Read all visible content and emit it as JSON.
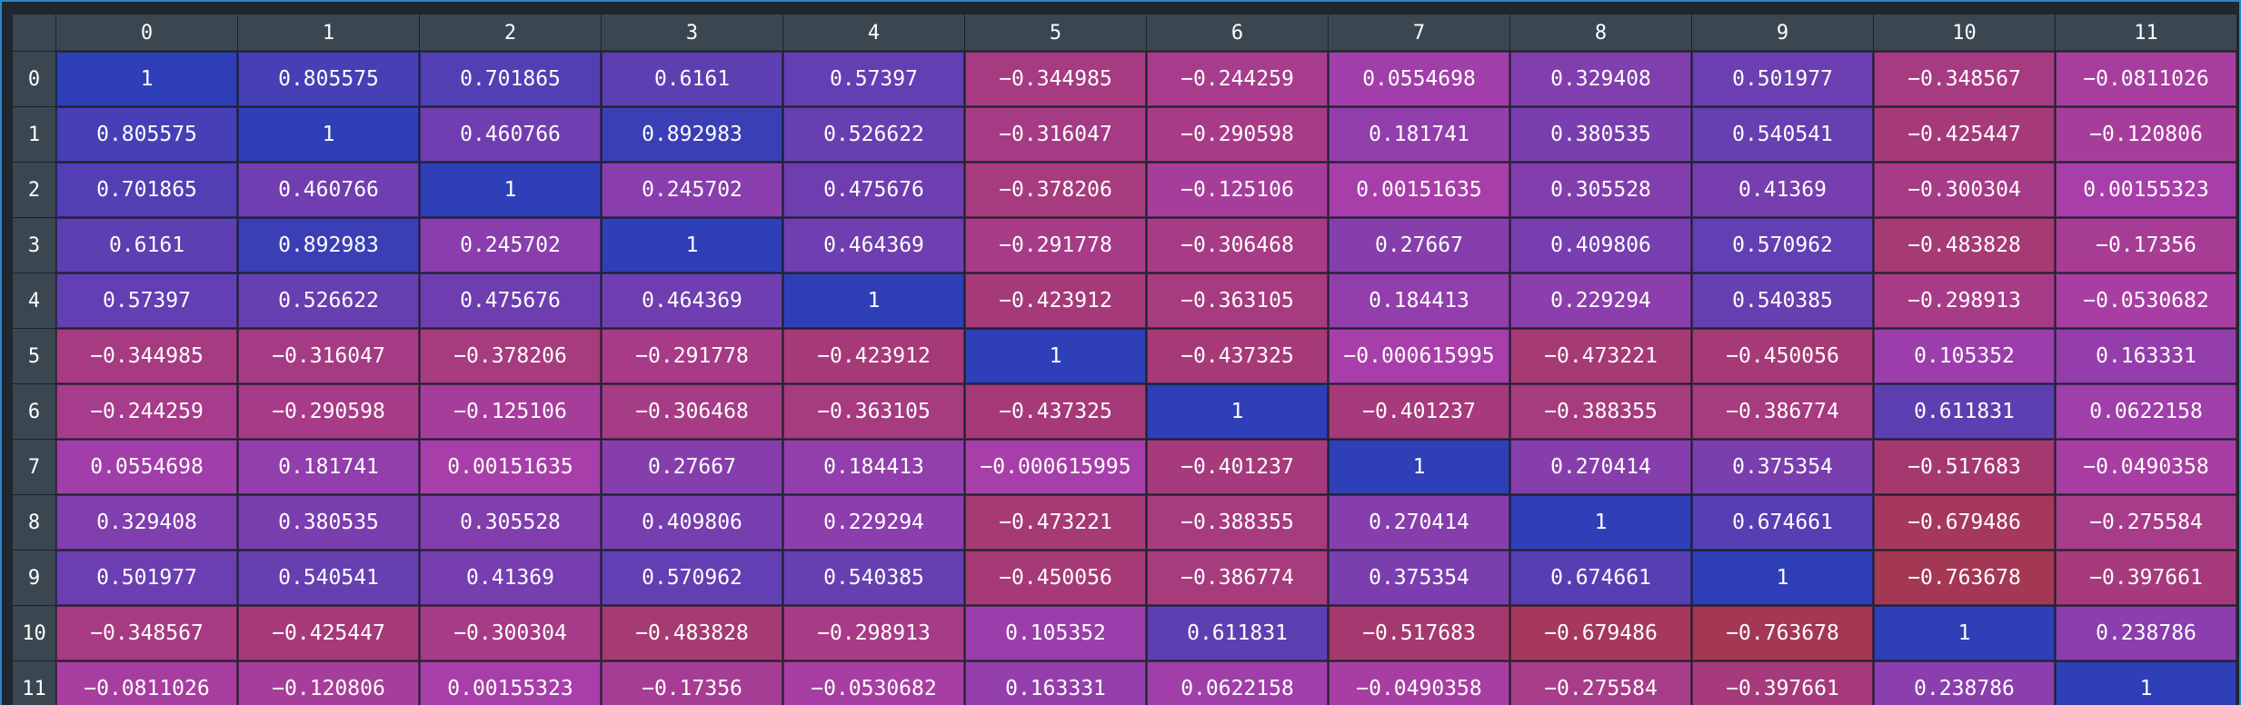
{
  "chart_data": {
    "type": "heatmap",
    "title": "",
    "xlabel": "",
    "ylabel": "",
    "row_labels": [
      "0",
      "1",
      "2",
      "3",
      "4",
      "5",
      "6",
      "7",
      "8",
      "9",
      "10",
      "11"
    ],
    "col_labels": [
      "0",
      "1",
      "2",
      "3",
      "4",
      "5",
      "6",
      "7",
      "8",
      "9",
      "10",
      "11"
    ],
    "value_range": [
      -1,
      1
    ],
    "colors": {
      "low": "#a33538",
      "mid": "#a83ea9",
      "high": "#2e3fb8"
    },
    "values": [
      [
        1,
        0.805575,
        0.701865,
        0.6161,
        0.57397,
        -0.344985,
        -0.244259,
        0.0554698,
        0.329408,
        0.501977,
        -0.348567,
        -0.0811026
      ],
      [
        0.805575,
        1,
        0.460766,
        0.892983,
        0.526622,
        -0.316047,
        -0.290598,
        0.181741,
        0.380535,
        0.540541,
        -0.425447,
        -0.120806
      ],
      [
        0.701865,
        0.460766,
        1,
        0.245702,
        0.475676,
        -0.378206,
        -0.125106,
        0.00151635,
        0.305528,
        0.41369,
        -0.300304,
        0.00155323
      ],
      [
        0.6161,
        0.892983,
        0.245702,
        1,
        0.464369,
        -0.291778,
        -0.306468,
        0.27667,
        0.409806,
        0.570962,
        -0.483828,
        -0.17356
      ],
      [
        0.57397,
        0.526622,
        0.475676,
        0.464369,
        1,
        -0.423912,
        -0.363105,
        0.184413,
        0.229294,
        0.540385,
        -0.298913,
        -0.0530682
      ],
      [
        -0.344985,
        -0.316047,
        -0.378206,
        -0.291778,
        -0.423912,
        1,
        -0.437325,
        -0.000615995,
        -0.473221,
        -0.450056,
        0.105352,
        0.163331
      ],
      [
        -0.244259,
        -0.290598,
        -0.125106,
        -0.306468,
        -0.363105,
        -0.437325,
        1,
        -0.401237,
        -0.388355,
        -0.386774,
        0.611831,
        0.0622158
      ],
      [
        0.0554698,
        0.181741,
        0.00151635,
        0.27667,
        0.184413,
        -0.000615995,
        -0.401237,
        1,
        0.270414,
        0.375354,
        -0.517683,
        -0.0490358
      ],
      [
        0.329408,
        0.380535,
        0.305528,
        0.409806,
        0.229294,
        -0.473221,
        -0.388355,
        0.270414,
        1,
        0.674661,
        -0.679486,
        -0.275584
      ],
      [
        0.501977,
        0.540541,
        0.41369,
        0.570962,
        0.540385,
        -0.450056,
        -0.386774,
        0.375354,
        0.674661,
        1,
        -0.763678,
        -0.397661
      ],
      [
        -0.348567,
        -0.425447,
        -0.300304,
        -0.483828,
        -0.298913,
        0.105352,
        0.611831,
        -0.517683,
        -0.679486,
        -0.763678,
        1,
        0.238786
      ],
      [
        -0.0811026,
        -0.120806,
        0.00155323,
        -0.17356,
        -0.0530682,
        0.163331,
        0.0622158,
        -0.0490358,
        -0.275584,
        -0.397661,
        0.238786,
        1
      ]
    ]
  }
}
